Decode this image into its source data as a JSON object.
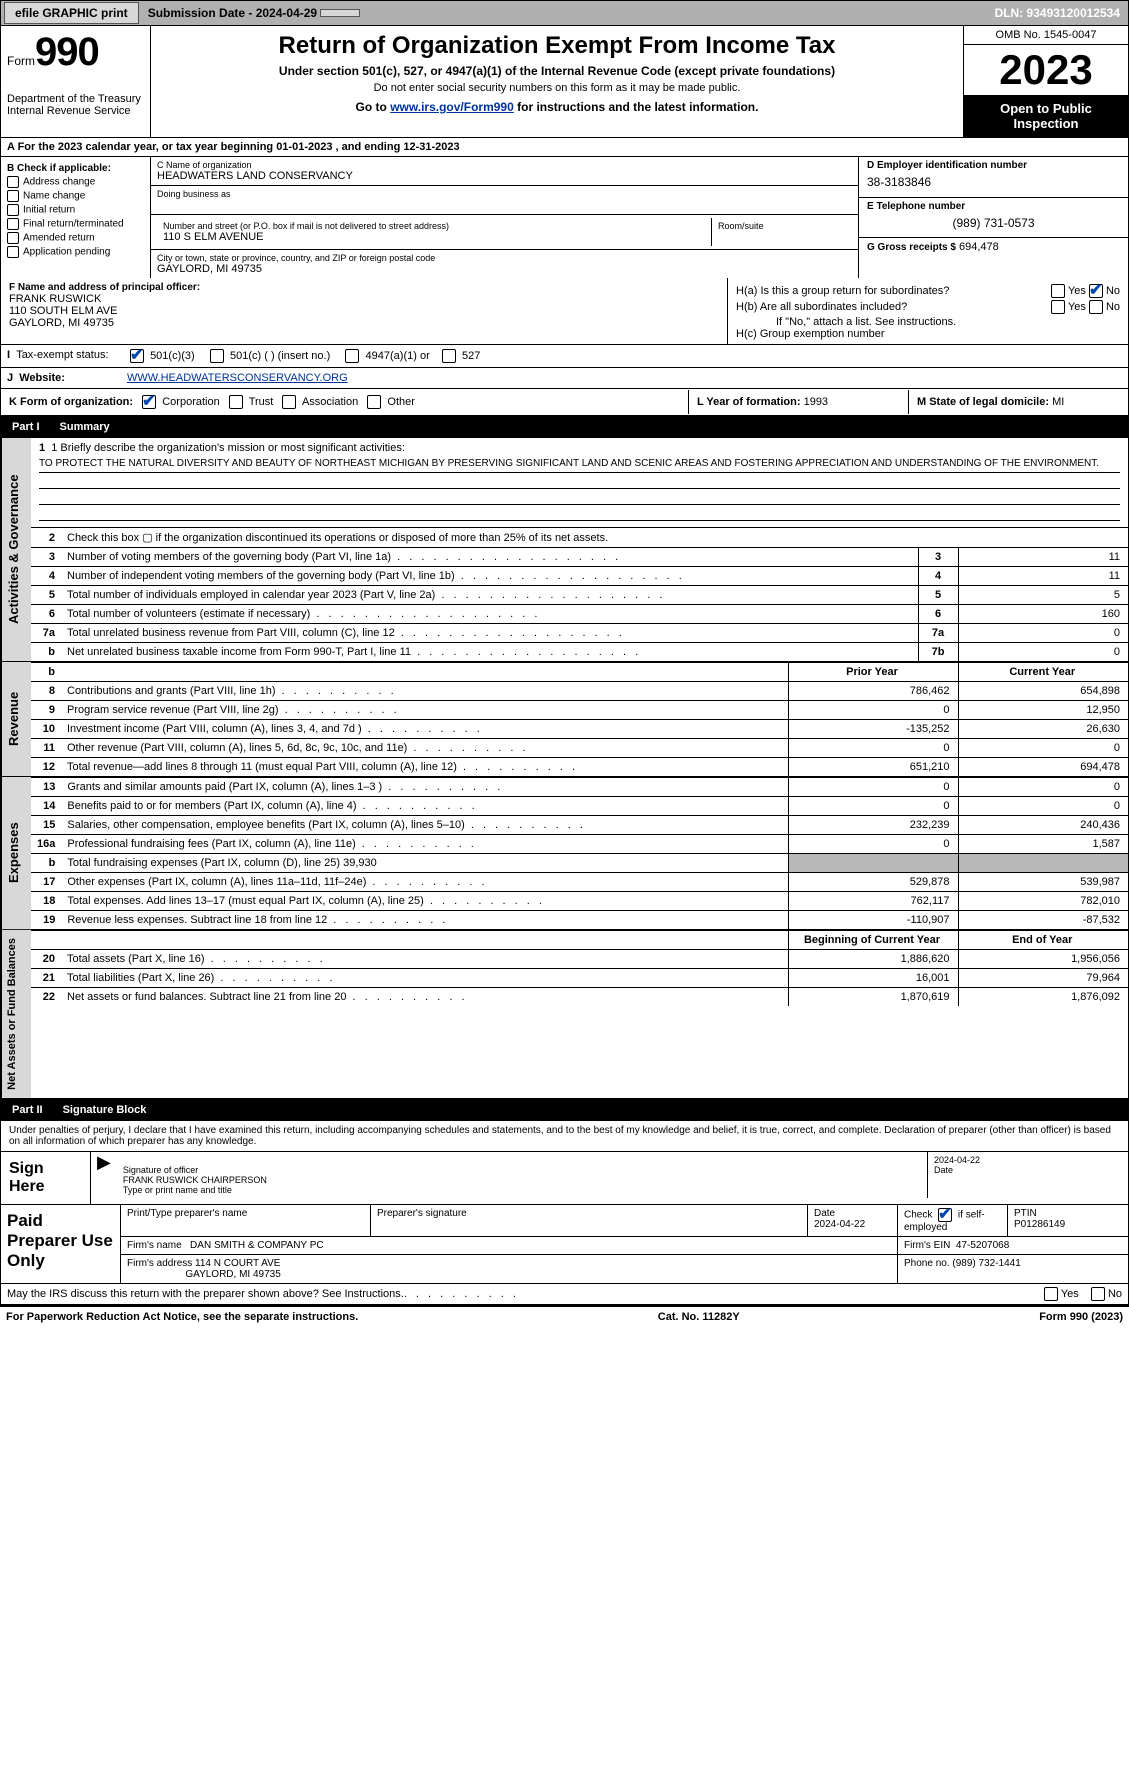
{
  "topbar": {
    "efile": "efile GRAPHIC print",
    "submission": "Submission Date - 2024-04-29",
    "dln": "DLN: 93493120012534"
  },
  "header": {
    "form_word": "Form",
    "form_no": "990",
    "dept": "Department of the Treasury",
    "irs": "Internal Revenue Service",
    "title": "Return of Organization Exempt From Income Tax",
    "subtitle": "Under section 501(c), 527, or 4947(a)(1) of the Internal Revenue Code (except private foundations)",
    "note": "Do not enter social security numbers on this form as it may be made public.",
    "goto_pre": "Go to ",
    "goto_link": "www.irs.gov/Form990",
    "goto_post": " for instructions and the latest information.",
    "omb": "OMB No. 1545-0047",
    "year": "2023",
    "inspect": "Open to Public Inspection"
  },
  "line_a": "A  For the 2023 calendar year, or tax year beginning 01-01-2023   , and ending 12-31-2023",
  "col_b": {
    "title": "B Check if applicable:",
    "addr": "Address change",
    "name": "Name change",
    "init": "Initial return",
    "final": "Final return/terminated",
    "amend": "Amended return",
    "app": "Application pending"
  },
  "col_c": {
    "name_lbl": "C Name of organization",
    "name": "HEADWATERS LAND CONSERVANCY",
    "dba_lbl": "Doing business as",
    "dba": "",
    "street_lbl": "Number and street (or P.O. box if mail is not delivered to street address)",
    "street": "110 S ELM AVENUE",
    "room_lbl": "Room/suite",
    "room": "",
    "city_lbl": "City or town, state or province, country, and ZIP or foreign postal code",
    "city": "GAYLORD, MI  49735"
  },
  "col_d": {
    "ein_lbl": "D Employer identification number",
    "ein": "38-3183846",
    "phone_lbl": "E Telephone number",
    "phone": "(989) 731-0573",
    "gross_lbl": "G Gross receipts $",
    "gross": "694,478"
  },
  "row_f": {
    "lbl": "F Name and address of principal officer:",
    "name": "FRANK RUSWICK",
    "addr1": "110 SOUTH ELM AVE",
    "addr2": "GAYLORD, MI  49735",
    "ha": "H(a)  Is this a group return for subordinates?",
    "hb": "H(b)  Are all subordinates included?",
    "hb_note": "If \"No,\" attach a list. See instructions.",
    "hc": "H(c)  Group exemption number",
    "yes": "Yes",
    "no": "No"
  },
  "row_i": {
    "lbl": "I",
    "txt": "Tax-exempt status:",
    "c3": "501(c)(3)",
    "c": "501(c) (  ) (insert no.)",
    "a1": "4947(a)(1) or",
    "s527": "527"
  },
  "row_j": {
    "lbl": "J",
    "txt": "Website:",
    "url": "WWW.HEADWATERSCONSERVANCY.ORG"
  },
  "row_k": {
    "lbl": "K Form of organization:",
    "corp": "Corporation",
    "trust": "Trust",
    "assoc": "Association",
    "other": "Other",
    "l_lbl": "L Year of formation:",
    "l_val": "1993",
    "m_lbl": "M State of legal domicile:",
    "m_val": "MI"
  },
  "part1": {
    "n": "Part I",
    "t": "Summary"
  },
  "mission": {
    "q": "1   Briefly describe the organization's mission or most significant activities:",
    "ans": "TO PROTECT THE NATURAL DIVERSITY AND BEAUTY OF NORTHEAST MICHIGAN BY PRESERVING SIGNIFICANT LAND AND SCENIC AREAS AND FOSTERING APPRECIATION AND UNDERSTANDING OF THE ENVIRONMENT."
  },
  "gov_rows": [
    {
      "n": "2",
      "t": "Check this box ▢  if the organization discontinued its operations or disposed of more than 25% of its net assets.",
      "noval": true
    },
    {
      "n": "3",
      "t": "Number of voting members of the governing body (Part VI, line 1a)",
      "box": "3",
      "v": "11"
    },
    {
      "n": "4",
      "t": "Number of independent voting members of the governing body (Part VI, line 1b)",
      "box": "4",
      "v": "11"
    },
    {
      "n": "5",
      "t": "Total number of individuals employed in calendar year 2023 (Part V, line 2a)",
      "box": "5",
      "v": "5"
    },
    {
      "n": "6",
      "t": "Total number of volunteers (estimate if necessary)",
      "box": "6",
      "v": "160"
    },
    {
      "n": "7a",
      "t": "Total unrelated business revenue from Part VIII, column (C), line 12",
      "box": "7a",
      "v": "0"
    },
    {
      "n": "b",
      "t": "Net unrelated business taxable income from Form 990-T, Part I, line 11",
      "box": "7b",
      "v": "0"
    }
  ],
  "rev_hdr": {
    "py": "Prior Year",
    "cy": "Current Year"
  },
  "rev_rows": [
    {
      "n": "8",
      "t": "Contributions and grants (Part VIII, line 1h)",
      "py": "786,462",
      "cy": "654,898"
    },
    {
      "n": "9",
      "t": "Program service revenue (Part VIII, line 2g)",
      "py": "0",
      "cy": "12,950"
    },
    {
      "n": "10",
      "t": "Investment income (Part VIII, column (A), lines 3, 4, and 7d )",
      "py": "-135,252",
      "cy": "26,630"
    },
    {
      "n": "11",
      "t": "Other revenue (Part VIII, column (A), lines 5, 6d, 8c, 9c, 10c, and 11e)",
      "py": "0",
      "cy": "0"
    },
    {
      "n": "12",
      "t": "Total revenue—add lines 8 through 11 (must equal Part VIII, column (A), line 12)",
      "py": "651,210",
      "cy": "694,478"
    }
  ],
  "exp_rows": [
    {
      "n": "13",
      "t": "Grants and similar amounts paid (Part IX, column (A), lines 1–3 )",
      "py": "0",
      "cy": "0"
    },
    {
      "n": "14",
      "t": "Benefits paid to or for members (Part IX, column (A), line 4)",
      "py": "0",
      "cy": "0"
    },
    {
      "n": "15",
      "t": "Salaries, other compensation, employee benefits (Part IX, column (A), lines 5–10)",
      "py": "232,239",
      "cy": "240,436"
    },
    {
      "n": "16a",
      "t": "Professional fundraising fees (Part IX, column (A), line 11e)",
      "py": "0",
      "cy": "1,587"
    },
    {
      "n": "b",
      "t": "Total fundraising expenses (Part IX, column (D), line 25) 39,930",
      "shade": true
    },
    {
      "n": "17",
      "t": "Other expenses (Part IX, column (A), lines 11a–11d, 11f–24e)",
      "py": "529,878",
      "cy": "539,987"
    },
    {
      "n": "18",
      "t": "Total expenses. Add lines 13–17 (must equal Part IX, column (A), line 25)",
      "py": "762,117",
      "cy": "782,010"
    },
    {
      "n": "19",
      "t": "Revenue less expenses. Subtract line 18 from line 12",
      "py": "-110,907",
      "cy": "-87,532"
    }
  ],
  "na_hdr": {
    "py": "Beginning of Current Year",
    "cy": "End of Year"
  },
  "na_rows": [
    {
      "n": "20",
      "t": "Total assets (Part X, line 16)",
      "py": "1,886,620",
      "cy": "1,956,056"
    },
    {
      "n": "21",
      "t": "Total liabilities (Part X, line 26)",
      "py": "16,001",
      "cy": "79,964"
    },
    {
      "n": "22",
      "t": "Net assets or fund balances. Subtract line 21 from line 20",
      "py": "1,870,619",
      "cy": "1,876,092"
    }
  ],
  "side": {
    "gov": "Activities & Governance",
    "rev": "Revenue",
    "exp": "Expenses",
    "na": "Net Assets or Fund Balances"
  },
  "part2": {
    "n": "Part II",
    "t": "Signature Block"
  },
  "sig": {
    "intro": "Under penalties of perjury, I declare that I have examined this return, including accompanying schedules and statements, and to the best of my knowledge and belief, it is true, correct, and complete. Declaration of preparer (other than officer) is based on all information of which preparer has any knowledge.",
    "here": "Sign Here",
    "sig_lbl": "Signature of officer",
    "date_lbl": "Date",
    "date": "2024-04-22",
    "name": "FRANK RUSWICK CHAIRPERSON",
    "name_lbl": "Type or print name and title"
  },
  "prep": {
    "title": "Paid Preparer Use Only",
    "pt_lbl": "Print/Type preparer's name",
    "pt": "",
    "sig_lbl": "Preparer's signature",
    "date_lbl": "Date",
    "date": "2024-04-22",
    "self_lbl": "Check",
    "self2": "if self-employed",
    "ptin_lbl": "PTIN",
    "ptin": "P01286149",
    "firm_lbl": "Firm's name",
    "firm": "DAN SMITH & COMPANY PC",
    "ein_lbl": "Firm's EIN",
    "ein": "47-5207068",
    "addr_lbl": "Firm's address",
    "addr1": "114 N COURT AVE",
    "addr2": "GAYLORD, MI  49735",
    "phone_lbl": "Phone no.",
    "phone": "(989) 732-1441"
  },
  "bottom": {
    "q": "May the IRS discuss this return with the preparer shown above? See Instructions.",
    "yes": "Yes",
    "no": "No"
  },
  "foot": {
    "l": "For Paperwork Reduction Act Notice, see the separate instructions.",
    "c": "Cat. No. 11282Y",
    "r": "Form 990 (2023)"
  }
}
